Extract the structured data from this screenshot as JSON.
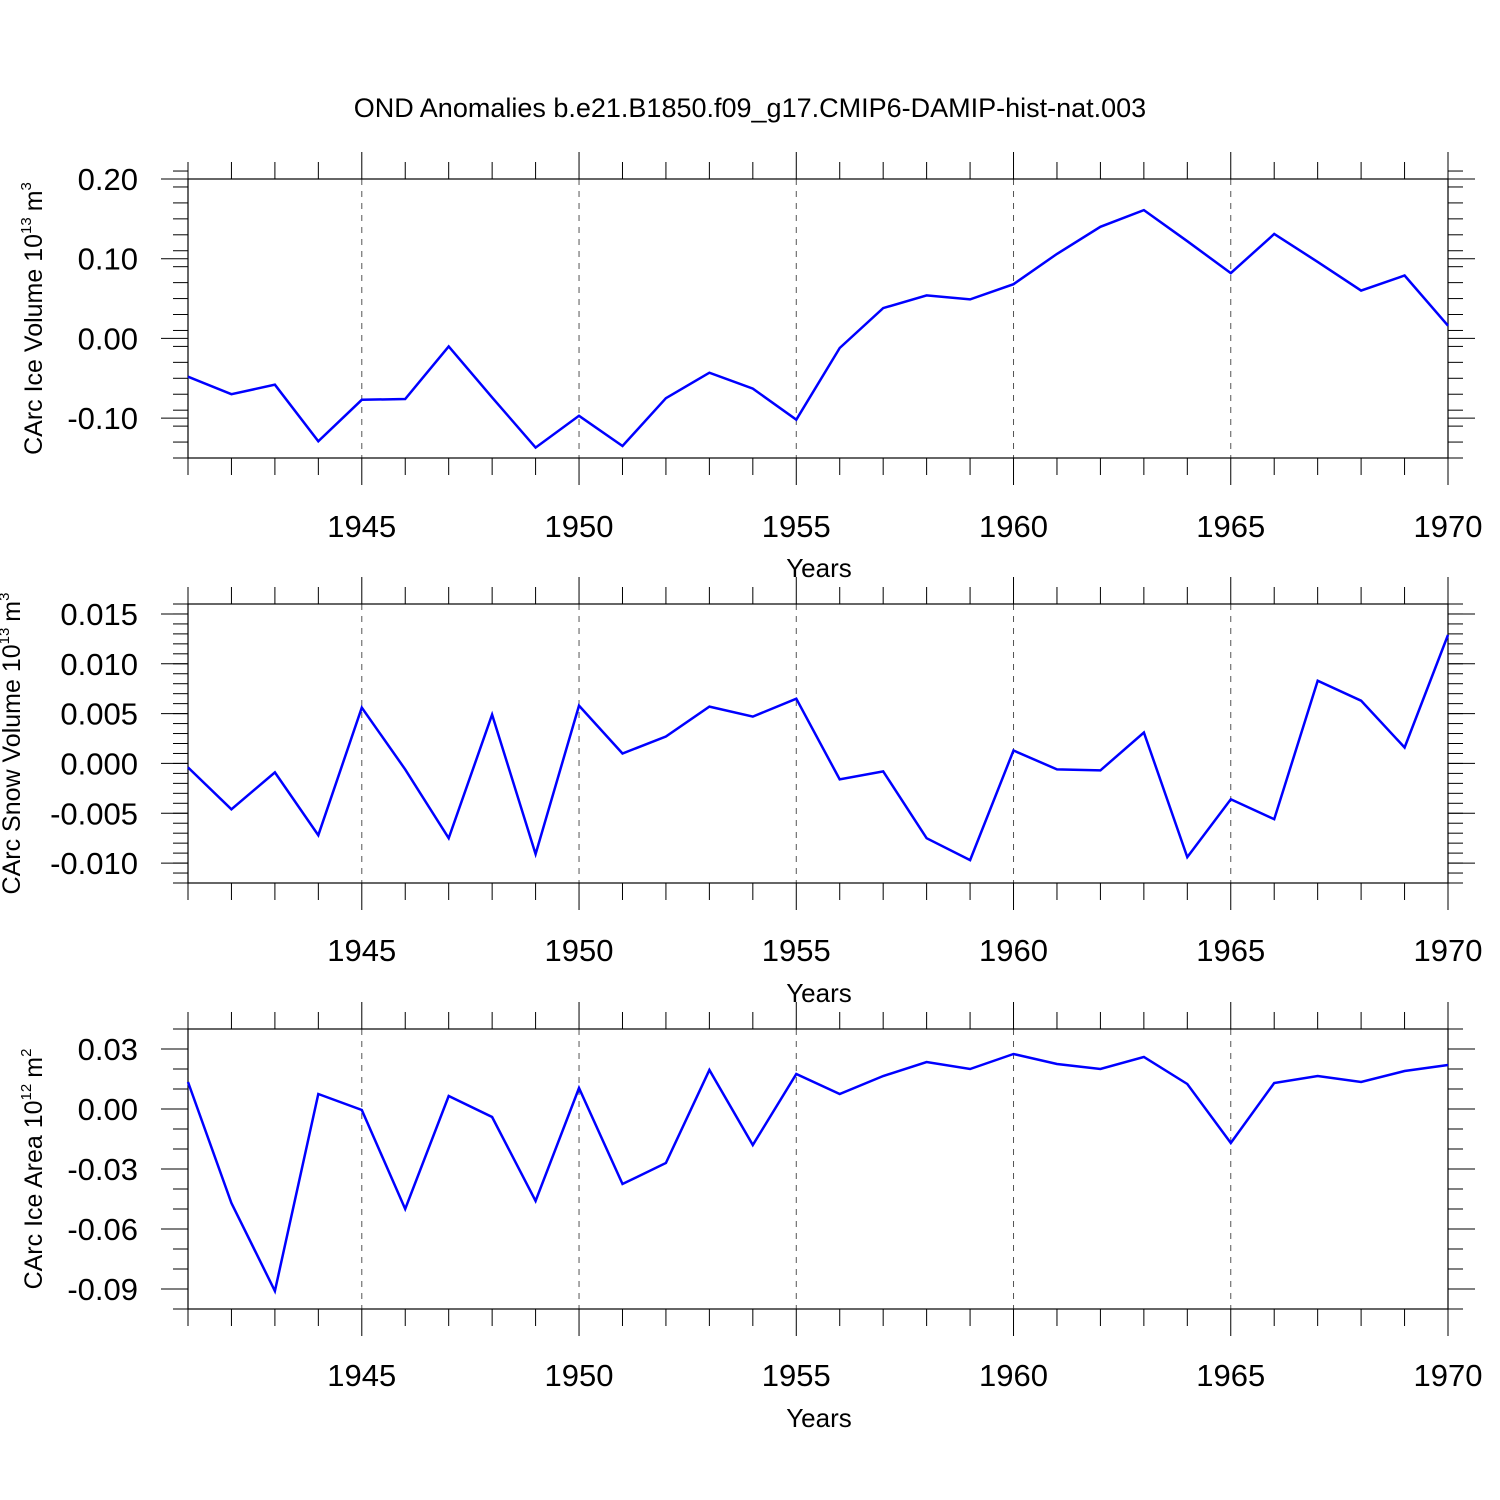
{
  "title": "OND Anomalies b.e21.B1850.f09_g17.CMIP6-DAMIP-hist-nat.003",
  "colors": {
    "line": "#0000ff",
    "axis": "#000000",
    "grid": "#555555"
  },
  "chart_data": [
    {
      "type": "line",
      "ylabel": {
        "text": "CArc Ice Volume 10",
        "exponent": "13",
        "unit": "m",
        "unit_exponent": "3"
      },
      "xlabel": "Years",
      "xlim": [
        1941,
        1970
      ],
      "ylim": [
        -0.15,
        0.2
      ],
      "yticks": [
        {
          "value": 0.2,
          "label": "0.20"
        },
        {
          "value": 0.1,
          "label": "0.10"
        },
        {
          "value": 0.0,
          "label": "0.00"
        },
        {
          "value": -0.1,
          "label": "-0.10"
        }
      ],
      "yminor_step": 0.02,
      "xticks": [
        {
          "value": 1945,
          "label": "1945"
        },
        {
          "value": 1950,
          "label": "1950"
        },
        {
          "value": 1955,
          "label": "1955"
        },
        {
          "value": 1960,
          "label": "1960"
        },
        {
          "value": 1965,
          "label": "1965"
        },
        {
          "value": 1970,
          "label": "1970"
        }
      ],
      "grid": "vertical dashed at major x ticks",
      "x": [
        1941,
        1942,
        1943,
        1944,
        1945,
        1946,
        1947,
        1948,
        1949,
        1950,
        1951,
        1952,
        1953,
        1954,
        1955,
        1956,
        1957,
        1958,
        1959,
        1960,
        1961,
        1962,
        1963,
        1964,
        1965,
        1966,
        1967,
        1968,
        1969,
        1970
      ],
      "y": [
        -0.048,
        -0.07,
        -0.058,
        -0.129,
        -0.077,
        -0.076,
        -0.01,
        -0.074,
        -0.137,
        -0.097,
        -0.135,
        -0.075,
        -0.043,
        -0.063,
        -0.102,
        -0.012,
        0.038,
        0.054,
        0.049,
        0.068,
        0.106,
        0.14,
        0.161,
        0.122,
        0.082,
        0.131,
        0.096,
        0.06,
        0.079,
        0.016
      ]
    },
    {
      "type": "line",
      "ylabel": {
        "text": "CArc Snow Volume 10",
        "exponent": "13",
        "unit": "m",
        "unit_exponent": "3"
      },
      "xlabel": "Years",
      "xlim": [
        1941,
        1970
      ],
      "ylim": [
        -0.012,
        0.016
      ],
      "yticks": [
        {
          "value": 0.015,
          "label": "0.015"
        },
        {
          "value": 0.01,
          "label": "0.010"
        },
        {
          "value": 0.005,
          "label": "0.005"
        },
        {
          "value": 0.0,
          "label": "0.000"
        },
        {
          "value": -0.005,
          "label": "-0.005"
        },
        {
          "value": -0.01,
          "label": "-0.010"
        }
      ],
      "yminor_step": 0.001,
      "xticks": [
        {
          "value": 1945,
          "label": "1945"
        },
        {
          "value": 1950,
          "label": "1950"
        },
        {
          "value": 1955,
          "label": "1955"
        },
        {
          "value": 1960,
          "label": "1960"
        },
        {
          "value": 1965,
          "label": "1965"
        },
        {
          "value": 1970,
          "label": "1970"
        }
      ],
      "grid": "vertical dashed at major x ticks",
      "x": [
        1941,
        1942,
        1943,
        1944,
        1945,
        1946,
        1947,
        1948,
        1949,
        1950,
        1951,
        1952,
        1953,
        1954,
        1955,
        1956,
        1957,
        1958,
        1959,
        1960,
        1961,
        1962,
        1963,
        1964,
        1965,
        1966,
        1967,
        1968,
        1969,
        1970
      ],
      "y": [
        -0.0004,
        -0.0046,
        -0.0009,
        -0.0072,
        0.0056,
        -0.0006,
        -0.0075,
        0.0049,
        -0.0091,
        0.0058,
        0.001,
        0.0027,
        0.0057,
        0.0047,
        0.0065,
        -0.0016,
        -0.0008,
        -0.0075,
        -0.0097,
        0.0013,
        -0.0006,
        -0.0007,
        0.0031,
        -0.0094,
        -0.0036,
        -0.0056,
        0.0083,
        0.0063,
        0.0016,
        0.0129
      ]
    },
    {
      "type": "line",
      "ylabel": {
        "text": "CArc Ice Area 10",
        "exponent": "12",
        "unit": "m",
        "unit_exponent": "2"
      },
      "xlabel": "Years",
      "xlim": [
        1941,
        1970
      ],
      "ylim": [
        -0.1,
        0.04
      ],
      "yticks": [
        {
          "value": 0.03,
          "label": "0.03"
        },
        {
          "value": 0.0,
          "label": "0.00"
        },
        {
          "value": -0.03,
          "label": "-0.03"
        },
        {
          "value": -0.06,
          "label": "-0.06"
        },
        {
          "value": -0.09,
          "label": "-0.09"
        }
      ],
      "yminor_step": 0.01,
      "xticks": [
        {
          "value": 1945,
          "label": "1945"
        },
        {
          "value": 1950,
          "label": "1950"
        },
        {
          "value": 1955,
          "label": "1955"
        },
        {
          "value": 1960,
          "label": "1960"
        },
        {
          "value": 1965,
          "label": "1965"
        },
        {
          "value": 1970,
          "label": "1970"
        }
      ],
      "grid": "vertical dashed at major x ticks",
      "x": [
        1941,
        1942,
        1943,
        1944,
        1945,
        1946,
        1947,
        1948,
        1949,
        1950,
        1951,
        1952,
        1953,
        1954,
        1955,
        1956,
        1957,
        1958,
        1959,
        1960,
        1961,
        1962,
        1963,
        1964,
        1965,
        1966,
        1967,
        1968,
        1969,
        1970
      ],
      "y": [
        0.0135,
        -0.047,
        -0.091,
        0.0075,
        -0.0005,
        -0.05,
        0.0065,
        -0.004,
        -0.046,
        0.0105,
        -0.0375,
        -0.027,
        0.0195,
        -0.018,
        0.0175,
        0.0075,
        0.0165,
        0.0235,
        0.02,
        0.0275,
        0.0225,
        0.02,
        0.026,
        0.0125,
        -0.017,
        0.013,
        0.0165,
        0.0135,
        0.019,
        0.022
      ]
    }
  ]
}
